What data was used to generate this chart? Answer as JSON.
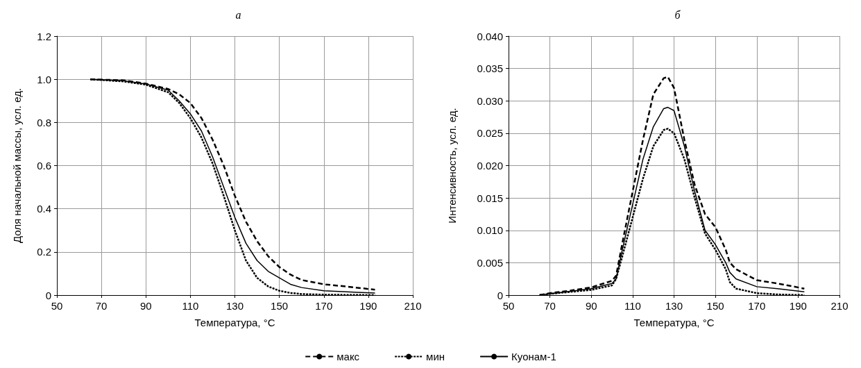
{
  "chart_data": [
    {
      "type": "line",
      "title": "а",
      "xlabel": "Температура, °C",
      "ylabel": "Доля начальной массы, усл. ед.",
      "xlim": [
        50,
        210
      ],
      "xticks": [
        50,
        70,
        90,
        110,
        130,
        150,
        170,
        190,
        210
      ],
      "ylim": [
        0,
        1.2
      ],
      "yticks": [
        0,
        0.2,
        0.4,
        0.6,
        0.8,
        {
          "value": 1,
          "label": "1.0"
        },
        1.2
      ],
      "grid": true,
      "legend": "bottom",
      "marker": "none",
      "x": [
        65,
        80,
        90,
        100,
        105,
        110,
        115,
        120,
        125,
        130,
        135,
        140,
        145,
        150,
        155,
        160,
        170,
        180,
        193
      ],
      "series": [
        {
          "name": "макс",
          "color": "#000000",
          "line_style": "dashed",
          "values": [
            1.0,
            0.995,
            0.98,
            0.955,
            0.93,
            0.89,
            0.82,
            0.72,
            0.6,
            0.46,
            0.34,
            0.25,
            0.18,
            0.13,
            0.095,
            0.07,
            0.05,
            0.04,
            0.025
          ]
        },
        {
          "name": "мин",
          "color": "#000000",
          "line_style": "dotted",
          "values": [
            1.0,
            0.99,
            0.975,
            0.94,
            0.89,
            0.82,
            0.73,
            0.61,
            0.46,
            0.3,
            0.16,
            0.08,
            0.04,
            0.02,
            0.01,
            0.005,
            0.002,
            0.001,
            0
          ]
        },
        {
          "name": "Куонам-1",
          "color": "#000000",
          "line_style": "solid",
          "values": [
            1.0,
            0.993,
            0.978,
            0.95,
            0.9,
            0.84,
            0.76,
            0.64,
            0.5,
            0.36,
            0.24,
            0.16,
            0.11,
            0.08,
            0.05,
            0.035,
            0.02,
            0.015,
            0.01
          ]
        }
      ]
    },
    {
      "type": "line",
      "title": "б",
      "xlabel": "Температура, °C",
      "ylabel": "Интенсивность, усл. ед.",
      "xlim": [
        50,
        210
      ],
      "xticks": [
        50,
        70,
        90,
        110,
        130,
        150,
        170,
        190,
        210
      ],
      "ylim": [
        0,
        0.04
      ],
      "yticks": [
        0,
        0.005,
        {
          "value": 0.01,
          "label": "0.010"
        },
        0.015,
        {
          "value": 0.02,
          "label": "0.020"
        },
        0.025,
        {
          "value": 0.03,
          "label": "0.030"
        },
        0.035,
        {
          "value": 0.04,
          "label": "0.040"
        }
      ],
      "grid": true,
      "marker": "none",
      "x": [
        65,
        70,
        80,
        90,
        100,
        102,
        105,
        110,
        115,
        120,
        125,
        127,
        130,
        135,
        140,
        145,
        150,
        155,
        157,
        160,
        170,
        180,
        193
      ],
      "series": [
        {
          "name": "макс",
          "color": "#000000",
          "line_style": "dashed",
          "values": [
            0,
            0.0003,
            0.0007,
            0.0012,
            0.0022,
            0.003,
            0.008,
            0.016,
            0.024,
            0.031,
            0.0335,
            0.0337,
            0.032,
            0.024,
            0.017,
            0.0125,
            0.0105,
            0.007,
            0.005,
            0.004,
            0.0023,
            0.0018,
            0.001
          ]
        },
        {
          "name": "мин",
          "color": "#000000",
          "line_style": "dotted",
          "values": [
            0,
            0.0002,
            0.0005,
            0.0008,
            0.0015,
            0.0025,
            0.006,
            0.012,
            0.018,
            0.023,
            0.0255,
            0.0257,
            0.025,
            0.021,
            0.015,
            0.0095,
            0.007,
            0.004,
            0.002,
            0.001,
            0.0003,
            0.0001,
            0
          ]
        },
        {
          "name": "Куонам-1",
          "color": "#000000",
          "line_style": "solid",
          "values": [
            0,
            0.0002,
            0.0006,
            0.001,
            0.0018,
            0.0025,
            0.007,
            0.014,
            0.021,
            0.026,
            0.0288,
            0.029,
            0.0285,
            0.023,
            0.016,
            0.01,
            0.0078,
            0.005,
            0.0035,
            0.0025,
            0.0013,
            0.001,
            0.0005
          ]
        }
      ]
    }
  ]
}
